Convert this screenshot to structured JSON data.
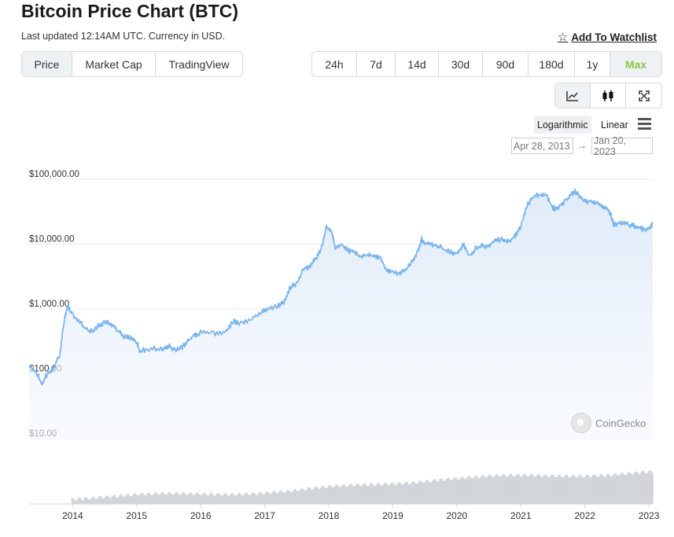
{
  "header": {
    "title": "Bitcoin Price Chart (BTC)",
    "updated": "Last updated 12:14AM UTC. Currency in USD.",
    "watchlist_label": "Add To Watchlist"
  },
  "tabs": [
    {
      "label": "Price",
      "active": true
    },
    {
      "label": "Market Cap",
      "active": false
    },
    {
      "label": "TradingView",
      "active": false
    }
  ],
  "ranges": [
    {
      "label": "24h",
      "active": false
    },
    {
      "label": "7d",
      "active": false
    },
    {
      "label": "14d",
      "active": false
    },
    {
      "label": "30d",
      "active": false
    },
    {
      "label": "90d",
      "active": false
    },
    {
      "label": "180d",
      "active": false
    },
    {
      "label": "1y",
      "active": false
    },
    {
      "label": "Max",
      "active": true
    }
  ],
  "chart_types": [
    "line-chart-icon",
    "candlestick-icon",
    "fullscreen-icon"
  ],
  "scale": {
    "log_label": "Logarithmic",
    "linear_label": "Linear",
    "selected": "log"
  },
  "date_range": {
    "from": "Apr 28, 2013",
    "to": "Jan 20, 2023"
  },
  "watermark": "CoinGecko",
  "colors": {
    "line": "#7cb5ec",
    "accent": "#8dc647",
    "volume": "#cfd2d6"
  },
  "chart_data": {
    "type": "area",
    "yscale": "log",
    "ylim": [
      10,
      100000
    ],
    "y_ticks": [
      "$10.00",
      "$100.00",
      "$1,000.00",
      "$10,000.00",
      "$100,000.00"
    ],
    "x_ticks": [
      "2014",
      "2015",
      "2016",
      "2017",
      "2018",
      "2019",
      "2020",
      "2021",
      "2022",
      "2023"
    ],
    "xlim": [
      2013.32,
      2023.06
    ],
    "series": [
      {
        "x": [
          2013.32,
          2013.45,
          2013.52,
          2013.6,
          2013.7,
          2013.8,
          2013.87,
          2013.92,
          2014.0,
          2014.1,
          2014.2,
          2014.3,
          2014.4,
          2014.5,
          2014.6,
          2014.7,
          2014.8,
          2014.9,
          2015.0,
          2015.05,
          2015.2,
          2015.4,
          2015.5,
          2015.6,
          2015.7,
          2015.8,
          2015.9,
          2016.0,
          2016.2,
          2016.4,
          2016.5,
          2016.6,
          2016.8,
          2016.95,
          2017.05,
          2017.2,
          2017.3,
          2017.4,
          2017.5,
          2017.6,
          2017.7,
          2017.8,
          2017.9,
          2017.96,
          2018.05,
          2018.1,
          2018.2,
          2018.3,
          2018.4,
          2018.5,
          2018.6,
          2018.7,
          2018.8,
          2018.9,
          2018.96,
          2019.1,
          2019.2,
          2019.3,
          2019.4,
          2019.45,
          2019.5,
          2019.6,
          2019.7,
          2019.8,
          2019.9,
          2020.0,
          2020.1,
          2020.2,
          2020.3,
          2020.4,
          2020.5,
          2020.6,
          2020.7,
          2020.8,
          2020.9,
          2021.0,
          2021.1,
          2021.2,
          2021.3,
          2021.4,
          2021.5,
          2021.55,
          2021.7,
          2021.8,
          2021.85,
          2021.9,
          2022.0,
          2022.1,
          2022.2,
          2022.3,
          2022.4,
          2022.45,
          2022.5,
          2022.6,
          2022.7,
          2022.8,
          2022.9,
          2023.0,
          2023.06
        ],
        "y": [
          130,
          100,
          68,
          100,
          120,
          200,
          700,
          1100,
          800,
          650,
          500,
          450,
          550,
          620,
          590,
          480,
          380,
          360,
          320,
          220,
          250,
          240,
          270,
          230,
          250,
          320,
          400,
          430,
          420,
          450,
          650,
          600,
          700,
          900,
          1000,
          1100,
          1300,
          2200,
          2500,
          4000,
          4500,
          6000,
          9500,
          18000,
          15000,
          9000,
          10000,
          8000,
          7500,
          6500,
          7000,
          6500,
          6300,
          4000,
          3700,
          3600,
          4000,
          5200,
          8000,
          12000,
          10500,
          10000,
          9500,
          8300,
          7500,
          7200,
          9800,
          6500,
          8800,
          9500,
          9200,
          11500,
          11800,
          10800,
          13000,
          19000,
          40000,
          55000,
          58000,
          57000,
          36000,
          35000,
          45000,
          60000,
          64000,
          57000,
          47000,
          44000,
          43000,
          38000,
          30000,
          20000,
          21000,
          22000,
          19500,
          19000,
          17000,
          16800,
          21000
        ]
      }
    ]
  }
}
